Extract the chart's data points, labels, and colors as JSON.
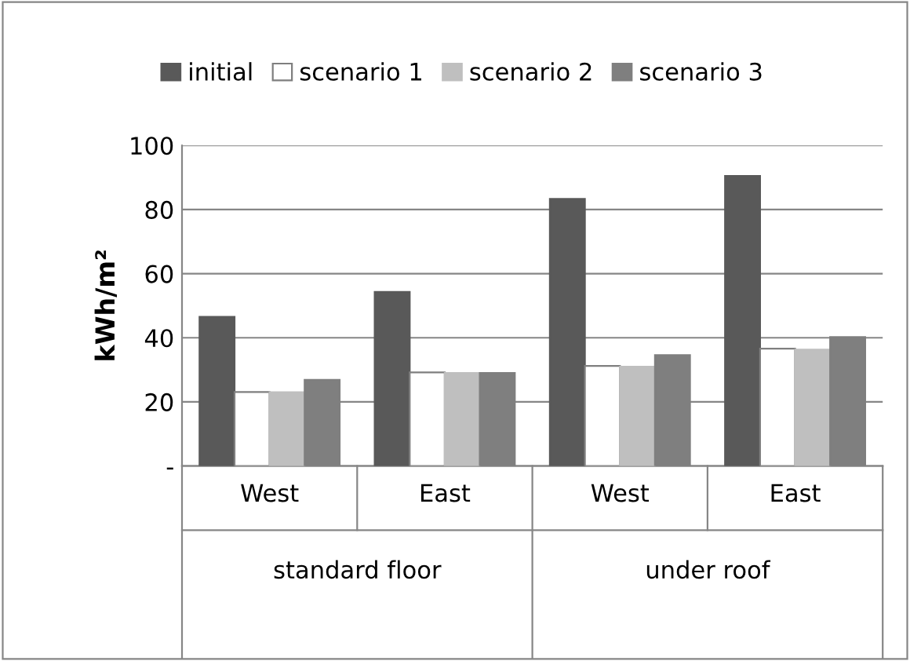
{
  "chart_data": {
    "type": "bar",
    "ylabel": "kWh/m²",
    "categories": [
      "West",
      "East",
      "West",
      "East"
    ],
    "series": [
      {
        "name": "initial",
        "color": "#595959",
        "values": [
          46.5,
          54.3,
          83.3,
          90.5
        ]
      },
      {
        "name": "scenario 1",
        "color": "#ffffff",
        "values": [
          23.1,
          29.2,
          31.2,
          36.6
        ]
      },
      {
        "name": "scenario 2",
        "color": "#bfbfbf",
        "values": [
          23,
          29,
          31,
          36.3
        ]
      },
      {
        "name": "scenario 3",
        "color": "#7f7f7f",
        "values": [
          26.9,
          29,
          34.6,
          40.2
        ]
      }
    ],
    "annotations": [
      "standard floor",
      "under roof"
    ],
    "ylim": [
      0,
      100
    ],
    "yticks": [
      {
        "value": 0,
        "label": "-"
      },
      20,
      40,
      60,
      80,
      100
    ],
    "grid": "y",
    "legend": "top"
  }
}
